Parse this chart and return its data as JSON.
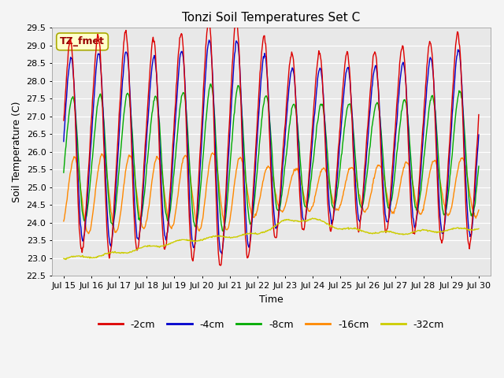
{
  "title": "Tonzi Soil Temperatures Set C",
  "xlabel": "Time",
  "ylabel": "Soil Temperature (C)",
  "annotation": "TZ_fmet",
  "annotation_bg": "#ffffcc",
  "annotation_border": "#aaaa00",
  "annotation_text_color": "#990000",
  "ylim": [
    22.5,
    29.5
  ],
  "xlim_days": [
    14.58,
    30.42
  ],
  "xtick_labels": [
    "Jul 15",
    "Jul 16",
    "Jul 17",
    "Jul 18",
    "Jul 19",
    "Jul 20",
    "Jul 21",
    "Jul 22",
    "Jul 23",
    "Jul 24",
    "Jul 25",
    "Jul 26",
    "Jul 27",
    "Jul 28",
    "Jul 29",
    "Jul 30"
  ],
  "xtick_positions": [
    15,
    16,
    17,
    18,
    19,
    20,
    21,
    22,
    23,
    24,
    25,
    26,
    27,
    28,
    29,
    30
  ],
  "colors": {
    "-2cm": "#dd0000",
    "-4cm": "#0000cc",
    "-8cm": "#00aa00",
    "-16cm": "#ff8800",
    "-32cm": "#cccc00"
  },
  "series_labels": [
    "-2cm",
    "-4cm",
    "-8cm",
    "-16cm",
    "-32cm"
  ],
  "fig_bg_color": "#f4f4f4",
  "plot_bg_color": "#e8e8e8",
  "grid_color": "#ffffff",
  "title_fontsize": 11,
  "axis_fontsize": 9,
  "tick_fontsize": 8
}
